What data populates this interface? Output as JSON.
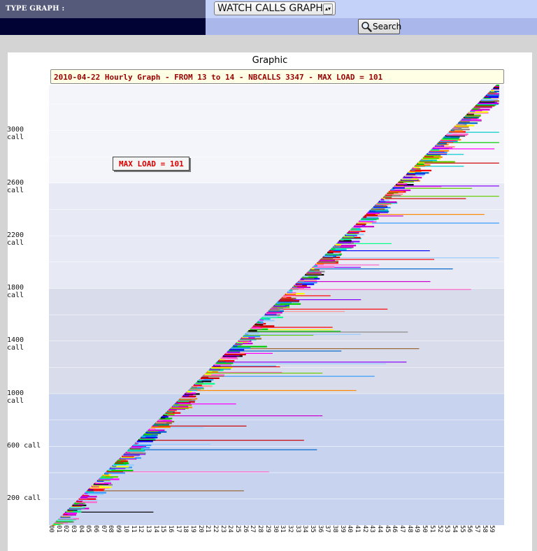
{
  "toolbar": {
    "type_graph_label": "TYPE GRAPH :",
    "graph_type_selected": "WATCH CALLS GRAPH",
    "search_label": "Search"
  },
  "panel": {
    "title": "Graphic",
    "header": "2010-04-22 Hourly Graph - FROM 13 to 14 - NBCALLS 3347 - MAX LOAD = 101",
    "max_load_badge": "MAX LOAD = 101"
  },
  "colors": {
    "series_palette": [
      "#ff0000",
      "#00cc00",
      "#0000ff",
      "#ff00ff",
      "#00cccc",
      "#ff8800",
      "#000000",
      "#888888",
      "#ffff00",
      "#8800ff",
      "#00ff88",
      "#cc0000",
      "#ff66cc",
      "#3399ff",
      "#996633",
      "#66cc00",
      "#0066cc",
      "#cc00cc",
      "#99ccff",
      "#ff9999"
    ],
    "band_colors": [
      "#c7d3ef",
      "#d9dcea",
      "#e7eaf5",
      "#f4f5fb"
    ]
  },
  "chart_data": {
    "type": "bar",
    "description_note": "Per-call horizontal duration bars; call index on y-axis, minute of hour on x-axis",
    "y_ticks": [
      "200 call",
      "600 call",
      "1000 call",
      "1400 call",
      "1800 call",
      "2200 call",
      "2600 call",
      "3000 call"
    ],
    "y_tick_values": [
      200,
      600,
      1000,
      1400,
      1800,
      2200,
      2600,
      3000
    ],
    "x_ticks": [
      "00",
      "01",
      "02",
      "03",
      "04",
      "05",
      "06",
      "07",
      "08",
      "09",
      "10",
      "11",
      "12",
      "13",
      "14",
      "15",
      "16",
      "17",
      "18",
      "19",
      "20",
      "21",
      "22",
      "23",
      "24",
      "25",
      "26",
      "27",
      "28",
      "29",
      "30",
      "31",
      "32",
      "33",
      "34",
      "35",
      "36",
      "37",
      "38",
      "39",
      "40",
      "41",
      "42",
      "43",
      "44",
      "45",
      "46",
      "47",
      "48",
      "49",
      "50",
      "51",
      "52",
      "53",
      "54",
      "55",
      "56",
      "57",
      "58",
      "59"
    ],
    "total_calls": 3347,
    "ylim": [
      0,
      3347
    ],
    "xlim": [
      0,
      60
    ]
  }
}
